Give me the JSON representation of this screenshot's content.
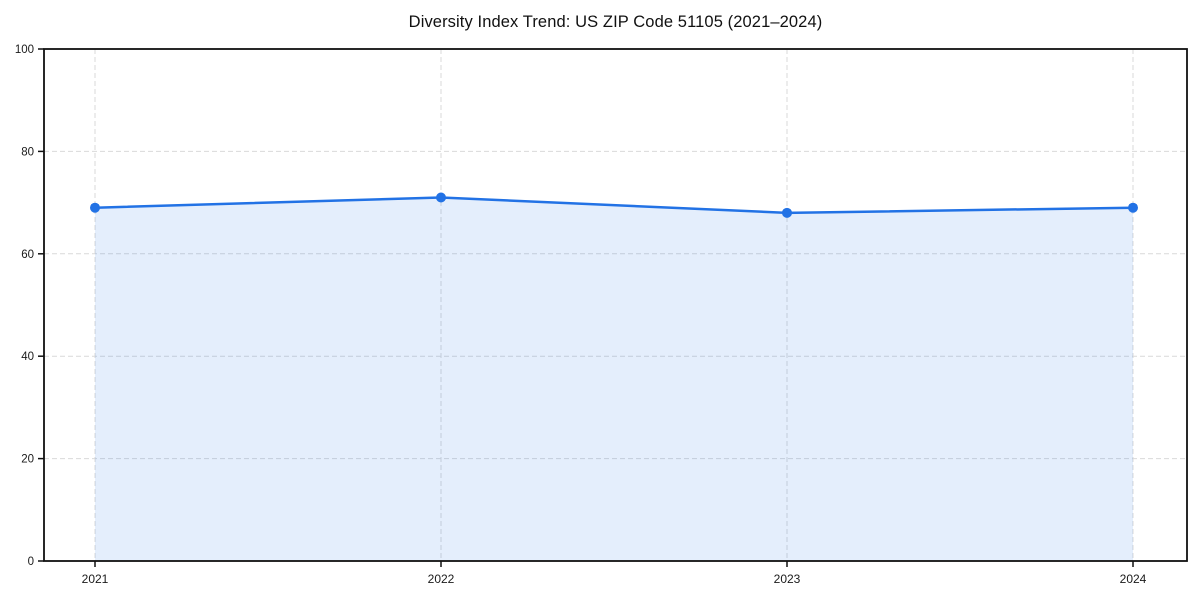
{
  "title": "Diversity Index Trend: US ZIP Code 51105 (2021–2024)",
  "chart_data": {
    "type": "area",
    "title": "Diversity Index Trend: US ZIP Code 51105 (2021–2024)",
    "series_name": "Diversity Index",
    "categories": [
      "2021",
      "2022",
      "2023",
      "2024"
    ],
    "values": [
      69,
      71,
      68,
      69
    ],
    "xlabel": "",
    "ylabel": "",
    "ylim": [
      0,
      100
    ],
    "yticks": [
      0,
      20,
      40,
      60,
      80,
      100
    ],
    "grid": true,
    "grid_style": "dashed",
    "legend": false,
    "colors": {
      "line": "#2272e5",
      "marker": "#2272e5",
      "fill": "#2272e5",
      "fill_opacity": 0.12,
      "grid": "#d9d9d9",
      "axis": "#111111",
      "tick_label": "#1a1a1a",
      "title": "#111111",
      "background": "#ffffff"
    }
  }
}
